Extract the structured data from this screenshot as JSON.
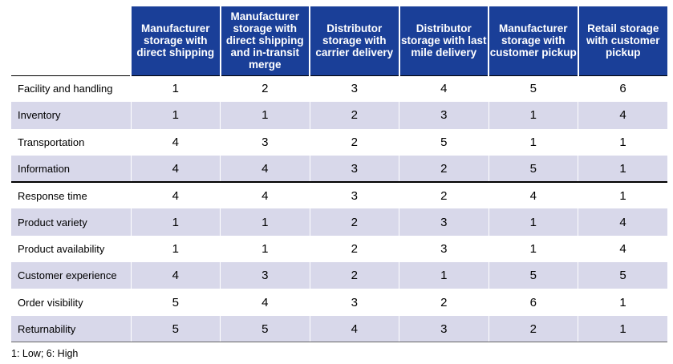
{
  "table": {
    "headers": [
      "Manufacturer storage with direct shipping",
      "Manufacturer storage with direct shipping and in-transit merge",
      "Distributor storage with carrier delivery",
      "Distributor storage with last mile delivery",
      "Manufacturer storage with customer pickup",
      "Retail storage with customer pickup"
    ],
    "rows": [
      {
        "label": "Facility and handling",
        "values": [
          "1",
          "2",
          "3",
          "4",
          "5",
          "6"
        ]
      },
      {
        "label": "Inventory",
        "values": [
          "1",
          "1",
          "2",
          "3",
          "1",
          "4"
        ]
      },
      {
        "label": "Transportation",
        "values": [
          "4",
          "3",
          "2",
          "5",
          "1",
          "1"
        ]
      },
      {
        "label": "Information",
        "values": [
          "4",
          "4",
          "3",
          "2",
          "5",
          "1"
        ]
      },
      {
        "label": "Response time",
        "values": [
          "4",
          "4",
          "3",
          "2",
          "4",
          "1"
        ]
      },
      {
        "label": "Product variety",
        "values": [
          "1",
          "1",
          "2",
          "3",
          "1",
          "4"
        ]
      },
      {
        "label": "Product availability",
        "values": [
          "1",
          "1",
          "2",
          "3",
          "1",
          "4"
        ]
      },
      {
        "label": "Customer experience",
        "values": [
          "4",
          "3",
          "2",
          "1",
          "5",
          "5"
        ]
      },
      {
        "label": "Order visibility",
        "values": [
          "5",
          "4",
          "3",
          "2",
          "6",
          "1"
        ]
      },
      {
        "label": "Returnability",
        "values": [
          "5",
          "5",
          "4",
          "3",
          "2",
          "1"
        ]
      }
    ]
  },
  "footnote": "1: Low; 6: High",
  "colors": {
    "header_bg": "#1a3f98",
    "header_text": "#ffffff",
    "row_shade": "#d8d8ea"
  }
}
